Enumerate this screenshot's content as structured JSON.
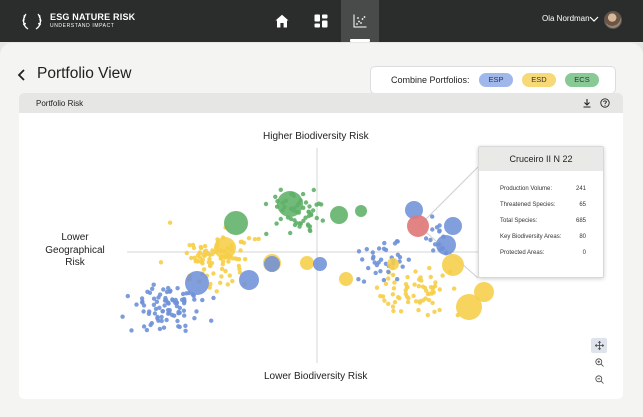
{
  "brand": {
    "title": "ESG NATURE RISK",
    "subtitle": "UNDERSTAND IMPACT"
  },
  "nav": {
    "items": [
      "home-icon",
      "dashboard-icon",
      "chart-icon"
    ],
    "active": "chart-icon"
  },
  "user": {
    "name": "Ola Nordman"
  },
  "page": {
    "title": "Portfolio View"
  },
  "combine": {
    "label": "Combine Portfolios:",
    "chips": [
      {
        "label": "ESP",
        "color": "#9fb7eb"
      },
      {
        "label": "ESD",
        "color": "#f8d977"
      },
      {
        "label": "ECS",
        "color": "#88c996"
      }
    ]
  },
  "panel": {
    "title": "Portfolio Risk",
    "icons": [
      "download-icon",
      "help-icon"
    ]
  },
  "chart_data": {
    "type": "scatter",
    "axis_labels": {
      "top": "Higher Biodiversity Risk",
      "bottom": "Lower Biodiversity Risk",
      "left": "Lower Geographical Risk"
    },
    "series": [
      {
        "name": "ESP",
        "color": "#6f91d8"
      },
      {
        "name": "ESD",
        "color": "#f6ce48"
      },
      {
        "name": "ECS",
        "color": "#5fb068"
      }
    ],
    "highlight_color": "#e07a7a"
  },
  "tooltip": {
    "title": "Cruceiro II N 22",
    "rows": [
      {
        "label": "Production Volume:",
        "value": "241"
      },
      {
        "label": "Threatened Species:",
        "value": "65"
      },
      {
        "label": "Total Species:",
        "value": "685"
      },
      {
        "label": "Key Biodiversity Areas:",
        "value": "80"
      },
      {
        "label": "Protected Areas:",
        "value": "0"
      }
    ]
  },
  "controls": [
    "pan-icon",
    "zoom-in-icon",
    "zoom-out-icon"
  ]
}
